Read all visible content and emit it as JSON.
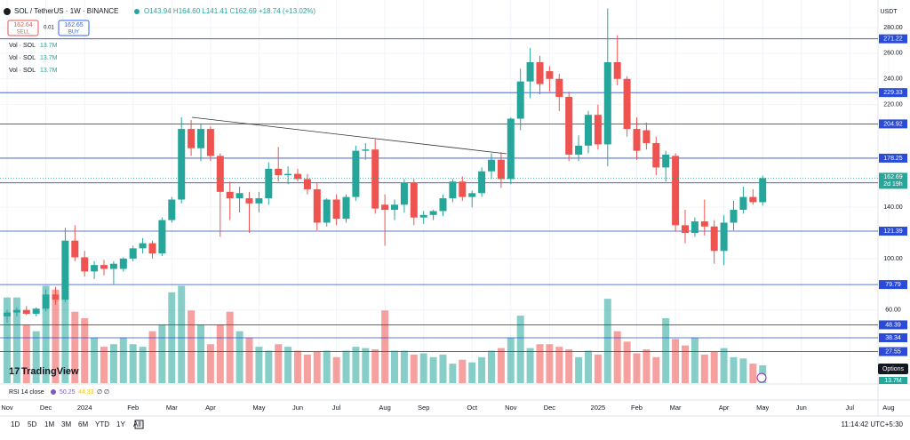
{
  "chart_data": {
    "type": "candlestick",
    "header": {
      "symbol": "SOL / TetherUS · 1W · BINANCE",
      "ohlc": "O143.94 H164.60 L141.41 C162.69 +18.74 (+13.02%)"
    },
    "trade": {
      "sell_price": "162.64",
      "sell": "SELL",
      "spread": "0.01",
      "buy_price": "162.65",
      "buy": "BUY"
    },
    "volume_legends": [
      {
        "name": "Vol · SOL",
        "value": "13.7M"
      },
      {
        "name": "Vol · SOL",
        "value": "13.7M"
      },
      {
        "name": "Vol · SOL",
        "value": "13.7M"
      }
    ],
    "currency": "USDT",
    "countdown": "2d 19h",
    "volume_axis_label": "13.7M",
    "options_label": "Options",
    "logo": "TradingView",
    "rsi": {
      "name": "RSI 14 close",
      "values": [
        "50.25",
        "44.33"
      ],
      "extra": "∅ ∅"
    },
    "toolbar": [
      "1D",
      "5D",
      "1M",
      "3M",
      "6M",
      "YTD",
      "1Y",
      "All"
    ],
    "clock": "11:14:42 UTC+5:30",
    "categories": [
      "Nov",
      null,
      null,
      null,
      "Dec",
      null,
      null,
      null,
      "2024",
      null,
      null,
      null,
      null,
      "Feb",
      null,
      null,
      null,
      "Mar",
      null,
      null,
      null,
      "Apr",
      null,
      null,
      null,
      null,
      "May",
      null,
      null,
      null,
      "Jun",
      null,
      null,
      null,
      "Jul",
      null,
      null,
      null,
      null,
      "Aug",
      null,
      null,
      null,
      "Sep",
      null,
      null,
      null,
      null,
      "Oct",
      null,
      null,
      null,
      "Nov",
      null,
      null,
      null,
      "Dec",
      null,
      null,
      null,
      null,
      "2025",
      null,
      null,
      null,
      "Feb",
      null,
      null,
      null,
      "Mar",
      null,
      null,
      null,
      null,
      "Apr",
      null,
      null,
      null,
      "May",
      null,
      null,
      null,
      "Jun",
      null,
      null,
      null,
      null,
      "Jul",
      null,
      null,
      null,
      "Aug"
    ],
    "open": [
      55,
      58,
      60,
      57,
      61,
      72,
      68,
      114,
      101,
      90,
      95,
      92,
      92,
      100,
      108,
      112,
      104,
      130,
      146,
      201,
      186,
      201,
      180,
      152,
      147,
      147,
      143,
      147,
      170,
      165,
      166,
      162,
      154,
      128,
      146,
      131,
      148,
      184,
      185,
      142,
      138,
      142,
      159,
      132,
      134,
      137,
      147,
      160,
      148,
      151,
      168,
      177,
      162,
      209,
      238,
      253,
      246,
      240,
      226,
      181,
      188,
      212,
      189,
      253,
      240,
      201,
      200,
      190,
      171,
      180,
      126,
      120,
      129,
      125,
      106,
      128,
      138,
      148,
      143.94,
      null,
      null,
      null,
      null,
      null,
      null,
      null,
      null,
      null,
      null,
      null,
      null,
      null
    ],
    "high": [
      60,
      62,
      63,
      62,
      76,
      78,
      124,
      126,
      106,
      98,
      99,
      98,
      101,
      110,
      116,
      114,
      132,
      148,
      210,
      208,
      205,
      203,
      182,
      160,
      156,
      152,
      152,
      175,
      187,
      172,
      170,
      166,
      159,
      147,
      150,
      150,
      188,
      190,
      193,
      150,
      146,
      162,
      162,
      137,
      138,
      150,
      162,
      164,
      153,
      171,
      182,
      183,
      210,
      248,
      264,
      258,
      250,
      244,
      230,
      196,
      215,
      220,
      295,
      274,
      242,
      210,
      206,
      195,
      184,
      182,
      138,
      132,
      146,
      130,
      134,
      145,
      156,
      154,
      164.6,
      null,
      null,
      null,
      null,
      null,
      null,
      null,
      null,
      null,
      null,
      null,
      null,
      null
    ],
    "low": [
      50,
      55,
      56,
      55,
      59,
      64,
      66,
      98,
      86,
      84,
      87,
      80,
      90,
      98,
      104,
      100,
      102,
      128,
      143,
      180,
      176,
      176,
      117,
      130,
      136,
      120,
      136,
      142,
      160,
      158,
      160,
      150,
      122,
      125,
      126,
      128,
      145,
      177,
      135,
      110,
      130,
      136,
      126,
      127,
      130,
      133,
      144,
      145,
      140,
      148,
      162,
      155,
      158,
      200,
      225,
      228,
      230,
      215,
      176,
      176,
      182,
      185,
      172,
      235,
      195,
      177,
      185,
      165,
      160,
      121,
      112,
      117,
      118,
      96,
      95,
      122,
      135,
      142,
      141.41,
      null,
      null,
      null,
      null,
      null,
      null,
      null,
      null,
      null,
      null,
      null,
      null,
      null
    ],
    "close": [
      58,
      60,
      57,
      61,
      72,
      68,
      114,
      101,
      90,
      95,
      92,
      96,
      100,
      108,
      112,
      104,
      130,
      146,
      201,
      186,
      201,
      180,
      152,
      147,
      151,
      143,
      147,
      170,
      165,
      166,
      162,
      154,
      128,
      146,
      131,
      148,
      184,
      185,
      139,
      138,
      142,
      159,
      132,
      134,
      137,
      147,
      160,
      148,
      151,
      168,
      177,
      162,
      209,
      238,
      253,
      236,
      240,
      226,
      181,
      188,
      212,
      189,
      253,
      240,
      201,
      184,
      190,
      171,
      181,
      126,
      120,
      129,
      125,
      106,
      128,
      138,
      148,
      144,
      162.69,
      null,
      null,
      null,
      null,
      null,
      null,
      null,
      null,
      null,
      null,
      null,
      null,
      null
    ],
    "volume": [
      66,
      66,
      45,
      40,
      75,
      72,
      78,
      55,
      50,
      35,
      28,
      30,
      35,
      30,
      28,
      40,
      45,
      70,
      75,
      56,
      45,
      30,
      45,
      55,
      40,
      35,
      28,
      25,
      30,
      28,
      25,
      22,
      24,
      25,
      20,
      25,
      28,
      27,
      26,
      56,
      25,
      25,
      22,
      23,
      20,
      22,
      15,
      18,
      16,
      20,
      25,
      27,
      35,
      52,
      27,
      30,
      30,
      28,
      26,
      20,
      25,
      22,
      65,
      40,
      32,
      23,
      26,
      20,
      50,
      34,
      29,
      35,
      22,
      24,
      27,
      20,
      19,
      15,
      13.7,
      null,
      null,
      null,
      null,
      null,
      null,
      null,
      null,
      null,
      null,
      null,
      null,
      null
    ],
    "up_color": "#26a69a",
    "down_color": "#ef5350",
    "level_color": "#2a4bd7",
    "levels": [
      271.22,
      229.33,
      204.92,
      178.25,
      159.03,
      121.39,
      79.79,
      48.39,
      38.34,
      27.55
    ],
    "ylim": [
      3,
      298
    ],
    "yticks": [
      {
        "value": 280,
        "label": "280.00"
      },
      {
        "value": 260,
        "label": "260.00"
      },
      {
        "value": 240,
        "label": "240.00"
      },
      {
        "value": 220,
        "label": "220.00"
      },
      {
        "value": 140,
        "label": "140.00"
      },
      {
        "value": 100,
        "label": "100.00"
      },
      {
        "value": 60,
        "label": "60.00"
      }
    ],
    "grid": true
  }
}
